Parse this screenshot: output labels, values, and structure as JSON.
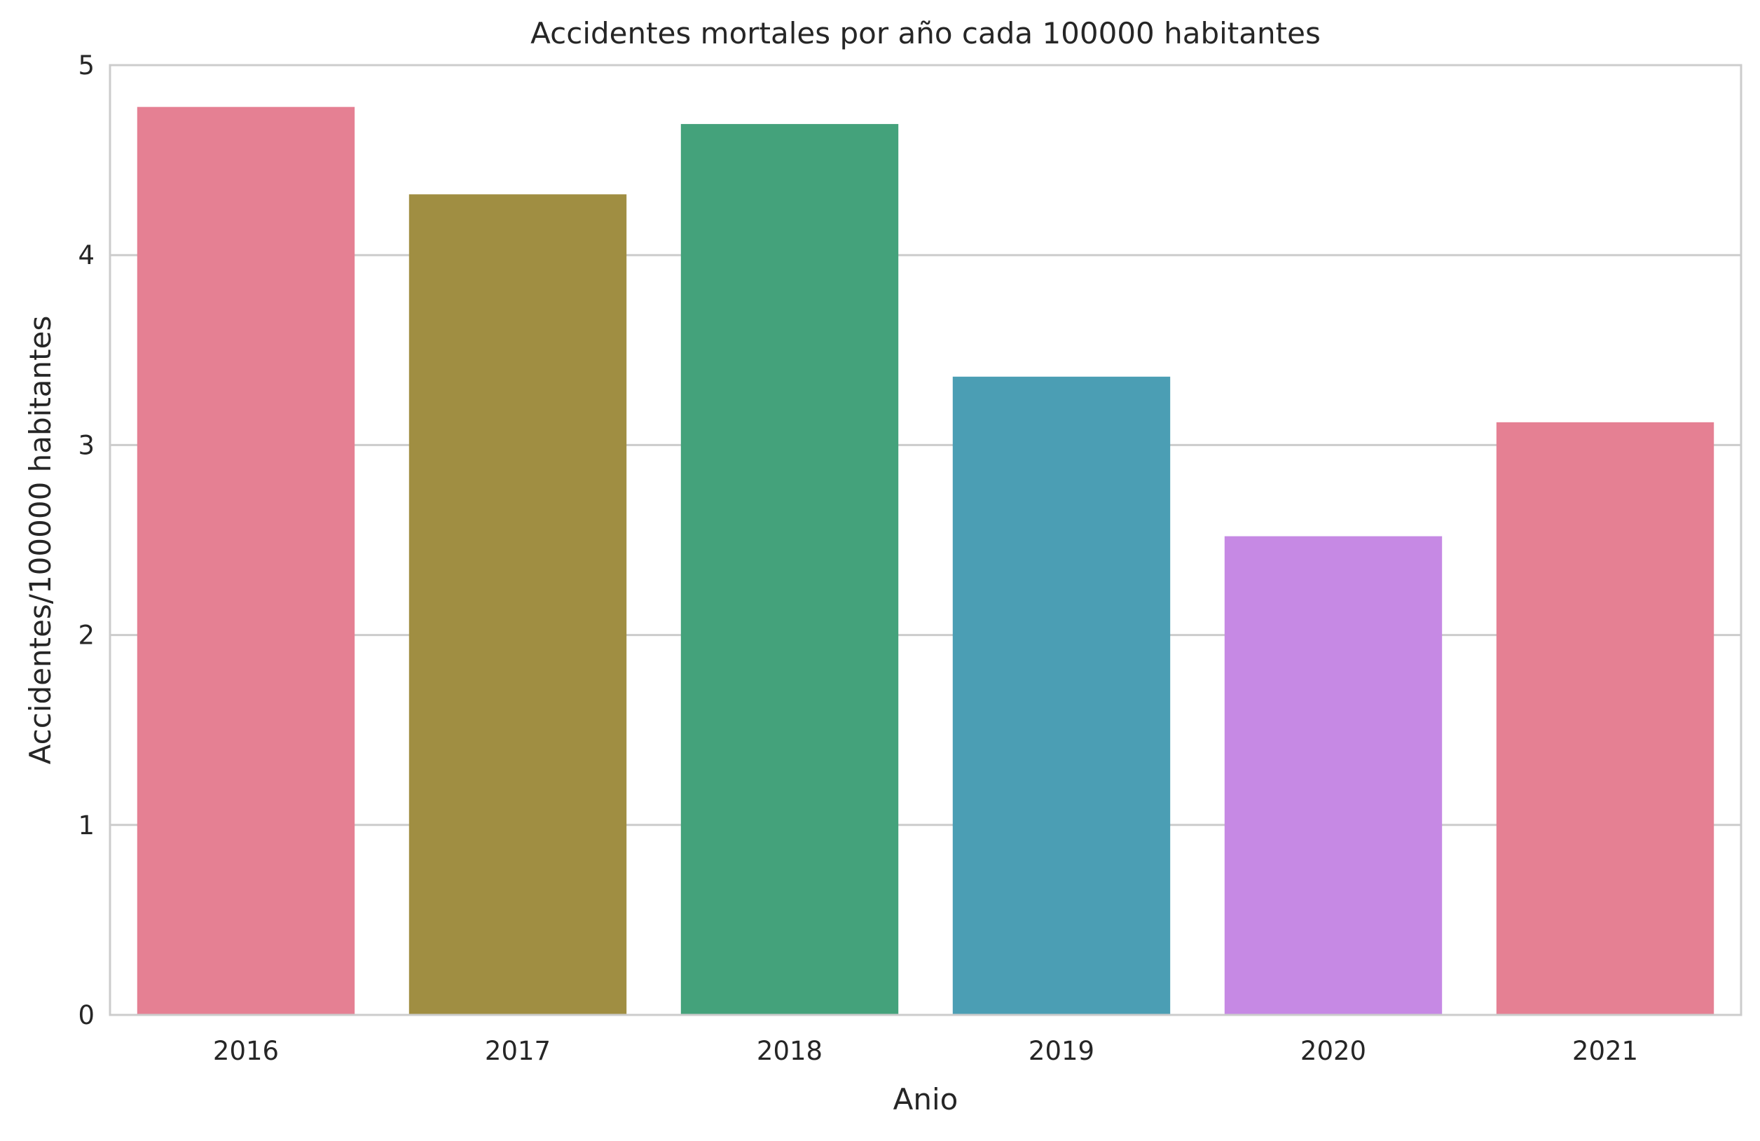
{
  "chart_data": {
    "type": "bar",
    "title": "Accidentes mortales por año cada 100000 habitantes",
    "xlabel": "Anio",
    "ylabel": "Accidentes/100000 habitantes",
    "categories": [
      "2016",
      "2017",
      "2018",
      "2019",
      "2020",
      "2021"
    ],
    "values": [
      4.78,
      4.32,
      4.69,
      3.36,
      2.52,
      3.12
    ],
    "colors": [
      "#e58093",
      "#a08e42",
      "#44a27b",
      "#4b9eb4",
      "#c689e4",
      "#e58093"
    ],
    "ylim": [
      0,
      5
    ],
    "yticks": [
      "0",
      "1",
      "2",
      "3",
      "4",
      "5"
    ],
    "grid": "horizontal",
    "legend": "none"
  }
}
